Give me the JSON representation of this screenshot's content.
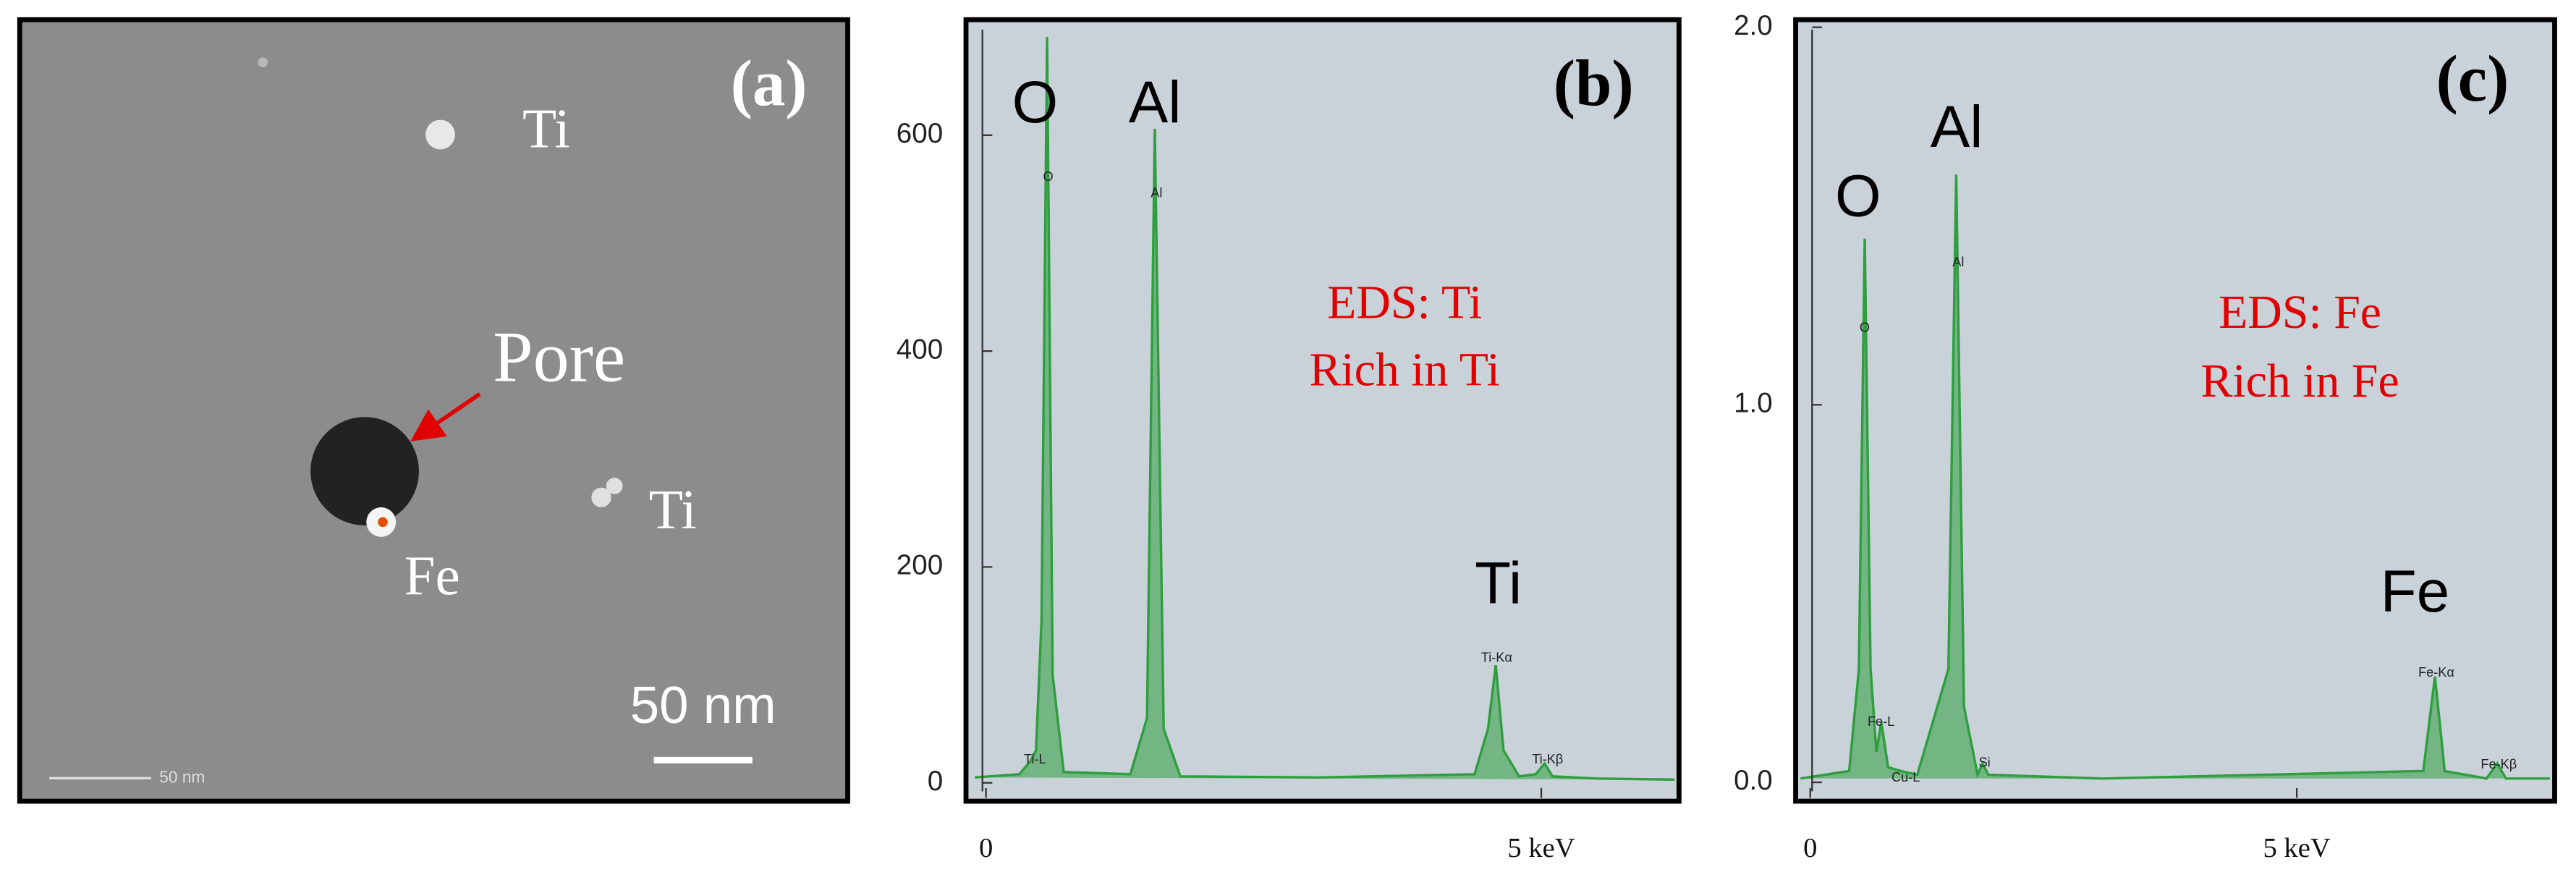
{
  "panel_a": {
    "label": "(a)",
    "annotations": [
      "Ti",
      "Ti",
      "Pore",
      "Fe"
    ],
    "scale_bar": "50 nm",
    "scale_bar_small": "50 nm"
  },
  "chart_data": [
    {
      "type": "line",
      "panel_label": "(b)",
      "annotations": [
        "EDS: Ti",
        "Rich in Ti"
      ],
      "peak_labels": [
        "O",
        "Al",
        "Ti"
      ],
      "small_peak_labels": [
        "Ti-L",
        "O",
        "Al",
        "Ti-Kα",
        "Ti-Kβ"
      ],
      "x": [
        -0.1,
        0.3,
        0.4,
        0.45,
        0.5,
        0.55,
        0.6,
        0.7,
        1.3,
        1.45,
        1.52,
        1.6,
        1.75,
        3.0,
        4.4,
        4.52,
        4.59,
        4.66,
        4.8,
        4.95,
        5.03,
        5.1,
        5.5,
        6.2
      ],
      "series": [
        {
          "color": "#2e9e3e",
          "values": [
            5,
            8,
            20,
            30,
            150,
            691,
            100,
            10,
            8,
            60,
            606,
            50,
            6,
            5,
            8,
            50,
            109,
            30,
            6,
            8,
            18,
            6,
            4,
            3
          ]
        }
      ],
      "xlim": [
        -0.18,
        6.24
      ],
      "ylim": [
        -17,
        707
      ],
      "xticks": [
        0,
        {
          "value": 5,
          "label": "5 keV"
        }
      ],
      "yticks": [
        0,
        200,
        400,
        600
      ]
    },
    {
      "type": "line",
      "panel_label": "(c)",
      "annotations": [
        "EDS: Fe",
        "Rich in Fe"
      ],
      "peak_labels": [
        "O",
        "Al",
        "Fe"
      ],
      "small_peak_labels": [
        "Fe-L",
        "Cu-L",
        "O",
        "Al",
        "Si",
        "Fe-Kα",
        "Fe-Kβ"
      ],
      "x": [
        -0.1,
        0.4,
        0.5,
        0.56,
        0.62,
        0.68,
        0.73,
        0.8,
        0.93,
        1.1,
        1.42,
        1.5,
        1.58,
        1.72,
        1.77,
        1.83,
        3.0,
        6.3,
        6.42,
        6.52,
        6.95,
        7.06,
        7.15,
        7.6
      ],
      "series": [
        {
          "color": "#2e9e3e",
          "values": [
            0.01,
            0.03,
            0.3,
            1.44,
            0.3,
            0.08,
            0.16,
            0.04,
            0.03,
            0.02,
            0.3,
            1.61,
            0.2,
            0.02,
            0.05,
            0.02,
            0.01,
            0.03,
            0.28,
            0.03,
            0.01,
            0.05,
            0.01,
            0.01
          ]
        }
      ],
      "xlim": [
        -0.15,
        7.65
      ],
      "ylim": [
        -0.05,
        2.02
      ],
      "xticks": [
        0,
        {
          "value": 5,
          "label": "5 keV"
        }
      ],
      "yticks": [
        {
          "value": 0,
          "label": "0.0"
        },
        {
          "value": 1,
          "label": "1.0"
        },
        {
          "value": 2,
          "label": "2.0"
        }
      ]
    }
  ]
}
